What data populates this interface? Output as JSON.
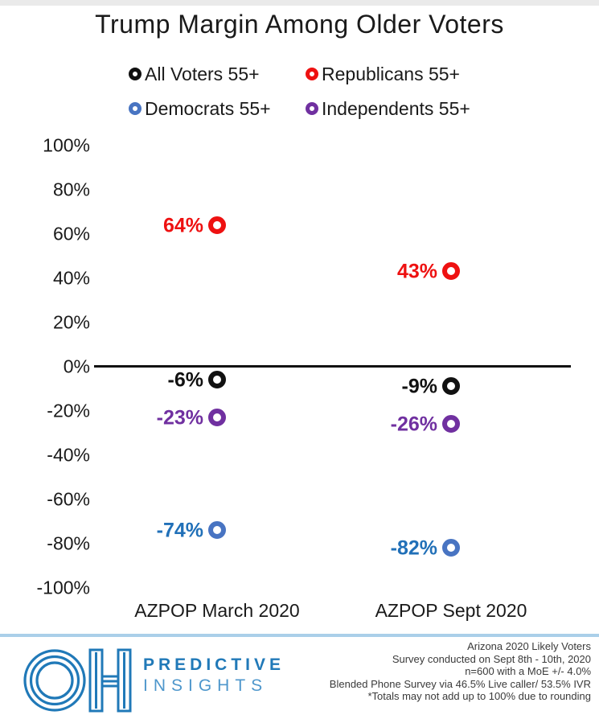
{
  "title": "Trump Margin Among Older Voters",
  "legend": {
    "items": [
      {
        "label": "All Voters 55+",
        "color": "#111111"
      },
      {
        "label": "Republicans 55+",
        "color": "#ee1111"
      },
      {
        "label": "Democrats 55+",
        "color": "#4874c2"
      },
      {
        "label": "Independents 55+",
        "color": "#7030a0"
      }
    ]
  },
  "chart_data": {
    "type": "scatter",
    "title": "Trump Margin Among Older Voters",
    "categories": [
      "AZPOP March 2020",
      "AZPOP Sept 2020"
    ],
    "series": [
      {
        "name": "Republicans 55+",
        "color": "#ee1111",
        "label_color": "#ee1111",
        "values": [
          64,
          43
        ],
        "labels": [
          "64%",
          "43%"
        ]
      },
      {
        "name": "All Voters 55+",
        "color": "#111111",
        "label_color": "#111111",
        "values": [
          -6,
          -9
        ],
        "labels": [
          "-6%",
          "-9%"
        ]
      },
      {
        "name": "Independents 55+",
        "color": "#7030a0",
        "label_color": "#7030a0",
        "values": [
          -23,
          -26
        ],
        "labels": [
          "-23%",
          "-26%"
        ]
      },
      {
        "name": "Democrats 55+",
        "color": "#4874c2",
        "label_color": "#2170b8",
        "values": [
          -74,
          -82
        ],
        "labels": [
          "-74%",
          "-82%"
        ]
      }
    ],
    "ylim": [
      -100,
      100
    ],
    "yticks": [
      {
        "value": 100,
        "label": "100%"
      },
      {
        "value": 80,
        "label": "80%"
      },
      {
        "value": 60,
        "label": "60%"
      },
      {
        "value": 40,
        "label": "40%"
      },
      {
        "value": 20,
        "label": "20%"
      },
      {
        "value": 0,
        "label": "0%"
      },
      {
        "value": -20,
        "label": "-20%"
      },
      {
        "value": -40,
        "label": "-40%"
      },
      {
        "value": -60,
        "label": "-60%"
      },
      {
        "value": -80,
        "label": "-80%"
      },
      {
        "value": -100,
        "label": "-100%"
      }
    ],
    "grid": false,
    "legend_position": "top",
    "zero_axis_line": true
  },
  "footer": {
    "logo": "OH",
    "brand_line1": "PREDICTIVE",
    "brand_line2": "INSIGHTS",
    "notes": [
      "Arizona 2020 Likely Voters",
      "Survey conducted on Sept 8th - 10th, 2020",
      "n=600 with a MoE +/- 4.0%",
      "Blended Phone Survey via 46.5% Live caller/ 53.5% IVR",
      "*Totals may not add up to 100% due to rounding"
    ]
  },
  "colors": {
    "brand_blue": "#2079b8",
    "brand_blue_light": "#4e97cc",
    "divider_blue": "#aacfe9",
    "axis_text": "#1a1a1a"
  }
}
